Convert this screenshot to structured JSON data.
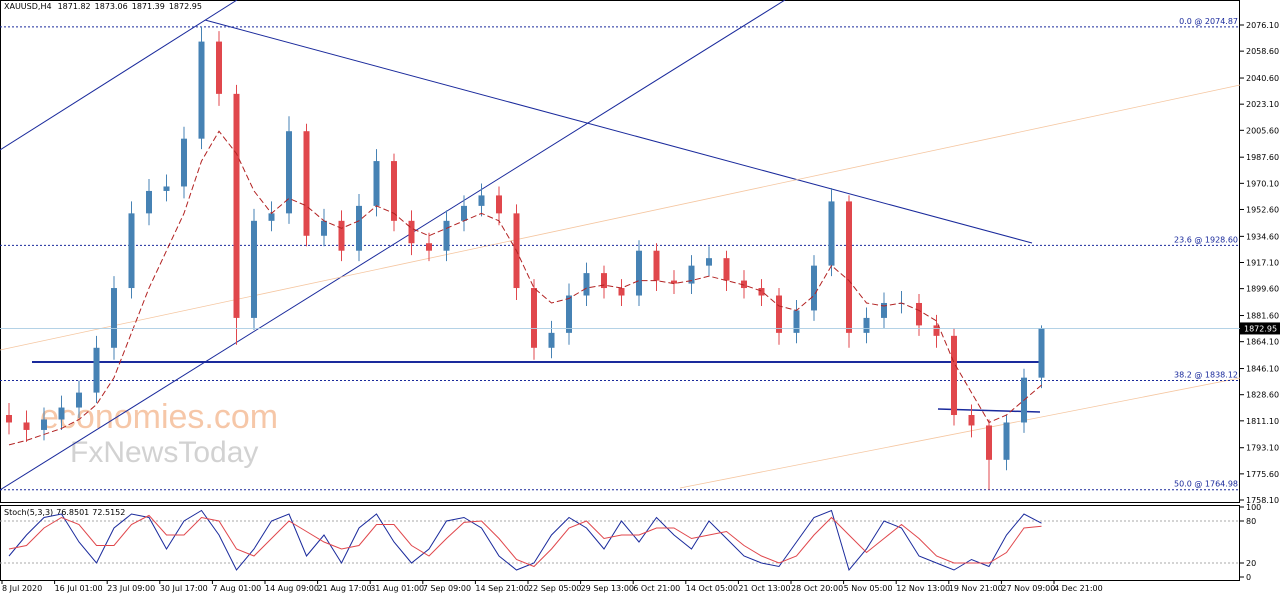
{
  "chart_data": {
    "type": "candlestick",
    "quote": {
      "symbol": "XAUUSD,H4",
      "open": 1871.82,
      "high": 1873.06,
      "low": 1871.39,
      "close": 1872.95
    },
    "watermark": [
      "economies.com",
      "FxNewsToday"
    ],
    "ylim": [
      1756.09,
      2092.84
    ],
    "yticks": [
      {
        "value": 2076.1,
        "label": "2076.10"
      },
      {
        "value": 2058.6,
        "label": "2058.60"
      },
      {
        "value": 2040.6,
        "label": "2040.60"
      },
      {
        "value": 2023.1,
        "label": "2023.10"
      },
      {
        "value": 2005.6,
        "label": "2005.60"
      },
      {
        "value": 1987.6,
        "label": "1987.60"
      },
      {
        "value": 1970.1,
        "label": "1970.10"
      },
      {
        "value": 1952.6,
        "label": "1952.60"
      },
      {
        "value": 1934.6,
        "label": "1934.60"
      },
      {
        "value": 1917.1,
        "label": "1917.10"
      },
      {
        "value": 1899.6,
        "label": "1899.60"
      },
      {
        "value": 1881.6,
        "label": "1881.60"
      },
      {
        "value": 1864.1,
        "label": "1864.10"
      },
      {
        "value": 1846.1,
        "label": "1846.10"
      },
      {
        "value": 1828.6,
        "label": "1828.60"
      },
      {
        "value": 1811.1,
        "label": "1811.10"
      },
      {
        "value": 1793.1,
        "label": "1793.10"
      },
      {
        "value": 1775.6,
        "label": "1775.60"
      },
      {
        "value": 1758.1,
        "label": "1758.10"
      }
    ],
    "grid": false,
    "up_color": "#4682b4",
    "down_color": "#e0474c",
    "open": [
      1815,
      1810,
      1805,
      1812,
      1820,
      1830,
      1860,
      1900,
      1950,
      1965,
      1968,
      2000,
      2065,
      2030,
      1880,
      1945,
      1950,
      2005,
      1935,
      1945,
      1925,
      1955,
      1985,
      1945,
      1930,
      1925,
      1945,
      1955,
      1962,
      1950,
      1900,
      1860,
      1870,
      1895,
      1910,
      1900,
      1895,
      1925,
      1905,
      1903,
      1915,
      1920,
      1905,
      1900,
      1895,
      1870,
      1885,
      1915,
      1958,
      1870,
      1880,
      1890,
      1890,
      1875,
      1868,
      1815,
      1808,
      1785,
      1810,
      1840
    ],
    "high": [
      1823,
      1818,
      1820,
      1828,
      1838,
      1868,
      1908,
      1958,
      1973,
      1976,
      2008,
      2075,
      2072,
      2036,
      1953,
      1958,
      2015,
      2010,
      1953,
      1952,
      1963,
      1993,
      1990,
      1952,
      1937,
      1952,
      1962,
      1970,
      1968,
      1956,
      1906,
      1878,
      1903,
      1917,
      1915,
      1906,
      1932,
      1930,
      1912,
      1922,
      1928,
      1925,
      1912,
      1906,
      1900,
      1892,
      1922,
      1967,
      1962,
      1887,
      1897,
      1898,
      1896,
      1882,
      1873,
      1822,
      1812,
      1815,
      1846,
      1875
    ],
    "low": [
      1802,
      1797,
      1798,
      1805,
      1813,
      1823,
      1852,
      1893,
      1942,
      1958,
      1960,
      1993,
      2022,
      1862,
      1872,
      1938,
      1943,
      1928,
      1928,
      1918,
      1918,
      1948,
      1938,
      1922,
      1918,
      1918,
      1938,
      1948,
      1942,
      1892,
      1852,
      1853,
      1862,
      1888,
      1893,
      1888,
      1888,
      1898,
      1896,
      1896,
      1908,
      1898,
      1893,
      1888,
      1862,
      1863,
      1878,
      1908,
      1860,
      1863,
      1873,
      1883,
      1868,
      1860,
      1808,
      1800,
      1765,
      1778,
      1803,
      1833
    ],
    "close": [
      1810,
      1805,
      1812,
      1820,
      1830,
      1860,
      1900,
      1950,
      1965,
      1968,
      2000,
      2065,
      2030,
      1880,
      1945,
      1950,
      2005,
      1935,
      1945,
      1925,
      1955,
      1985,
      1945,
      1930,
      1925,
      1945,
      1955,
      1962,
      1950,
      1900,
      1860,
      1870,
      1895,
      1910,
      1900,
      1895,
      1925,
      1905,
      1903,
      1915,
      1920,
      1905,
      1900,
      1895,
      1870,
      1885,
      1915,
      1958,
      1870,
      1880,
      1890,
      1890,
      1875,
      1868,
      1815,
      1808,
      1785,
      1810,
      1840,
      1872.95
    ],
    "moving_average": {
      "color": "#b22222",
      "values": [
        1795,
        1798,
        1802,
        1806,
        1812,
        1822,
        1840,
        1870,
        1900,
        1925,
        1950,
        1985,
        2005,
        1990,
        1965,
        1950,
        1960,
        1955,
        1945,
        1940,
        1945,
        1955,
        1950,
        1940,
        1935,
        1940,
        1945,
        1950,
        1945,
        1925,
        1900,
        1890,
        1893,
        1900,
        1902,
        1900,
        1905,
        1905,
        1903,
        1905,
        1908,
        1905,
        1902,
        1898,
        1888,
        1885,
        1895,
        1915,
        1905,
        1890,
        1888,
        1890,
        1885,
        1878,
        1850,
        1830,
        1810,
        1815,
        1825,
        1835
      ]
    },
    "fib_levels": [
      {
        "label": "0.0 @ 2074.87",
        "value": 2074.87
      },
      {
        "label": "23.6 @ 1928.60",
        "value": 1928.6
      },
      {
        "label": "38.2 @ 1838.12",
        "value": 1838.12
      },
      {
        "label": "50.0 @ 1764.98",
        "value": 1764.98
      }
    ],
    "x_labels": [
      "8 Jul 2020",
      "16 Jul 01:00",
      "23 Jul 09:00",
      "30 Jul 17:00",
      "7 Aug 01:00",
      "14 Aug 09:00",
      "21 Aug 17:00",
      "31 Aug 01:00",
      "7 Sep 09:00",
      "14 Sep 21:00",
      "22 Sep 05:00",
      "29 Sep 13:00",
      "6 Oct 21:00",
      "14 Oct 05:00",
      "21 Oct 13:00",
      "28 Oct 20:00",
      "5 Nov 05:00",
      "12 Nov 13:00",
      "19 Nov 21:00",
      "27 Nov 09:00",
      "4 Dec 21:00"
    ],
    "stochastic": {
      "name": "Stoch(5,3,3)",
      "ylim": [
        0,
        100
      ],
      "yticks": [
        100,
        80,
        20,
        0
      ],
      "series": [
        {
          "color": "#1a2a9c",
          "values": [
            30,
            60,
            85,
            90,
            50,
            20,
            70,
            90,
            85,
            40,
            80,
            95,
            60,
            10,
            40,
            80,
            90,
            30,
            60,
            20,
            70,
            90,
            50,
            20,
            40,
            80,
            85,
            70,
            30,
            10,
            20,
            60,
            85,
            70,
            40,
            80,
            50,
            85,
            60,
            40,
            80,
            55,
            30,
            20,
            15,
            50,
            85,
            95,
            10,
            40,
            80,
            70,
            30,
            20,
            10,
            25,
            15,
            60,
            90,
            76.8501
          ]
        },
        {
          "color": "#e0474c",
          "values": [
            40,
            45,
            70,
            85,
            75,
            45,
            45,
            75,
            88,
            60,
            60,
            85,
            80,
            40,
            30,
            55,
            80,
            65,
            50,
            40,
            45,
            75,
            75,
            45,
            30,
            55,
            78,
            80,
            55,
            25,
            15,
            40,
            70,
            80,
            55,
            60,
            60,
            70,
            70,
            55,
            60,
            65,
            45,
            30,
            20,
            30,
            60,
            85,
            60,
            35,
            55,
            75,
            55,
            30,
            20,
            20,
            20,
            35,
            70,
            72.5152
          ]
        }
      ]
    }
  }
}
